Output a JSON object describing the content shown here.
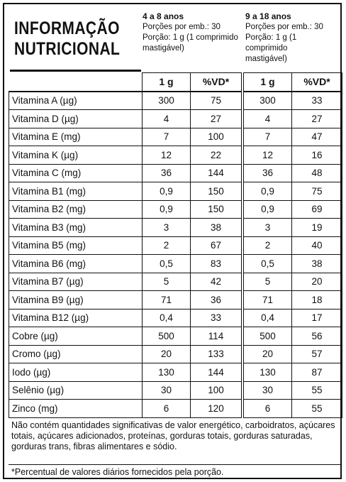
{
  "header": {
    "title_line1": "INFORMAÇÃO",
    "title_line2": "NUTRICIONAL"
  },
  "groups": [
    {
      "title": "4 a 8 anos",
      "line1": "Porções por emb.: 30",
      "line2": "Porção: 1 g (1 comprimido",
      "line3": "mastigável)"
    },
    {
      "title": "9 a 18 anos",
      "line1": "Porções por emb.: 30",
      "line2": "Porção: 1 g (1 comprimido",
      "line3": "mastigável)"
    }
  ],
  "columns": {
    "g1_amount": "1 g",
    "g1_vd": "%VD*",
    "g2_amount": "1 g",
    "g2_vd": "%VD*"
  },
  "rows": [
    {
      "name": "Vitamina A (µg)",
      "a1": "300",
      "v1": "75",
      "a2": "300",
      "v2": "33"
    },
    {
      "name": "Vitamina D (µg)",
      "a1": "4",
      "v1": "27",
      "a2": "4",
      "v2": "27"
    },
    {
      "name": "Vitamina E (mg)",
      "a1": "7",
      "v1": "100",
      "a2": "7",
      "v2": "47"
    },
    {
      "name": "Vitamina K (µg)",
      "a1": "12",
      "v1": "22",
      "a2": "12",
      "v2": "16"
    },
    {
      "name": "Vitamina C (mg)",
      "a1": "36",
      "v1": "144",
      "a2": "36",
      "v2": "48"
    },
    {
      "name": "Vitamina B1 (mg)",
      "a1": "0,9",
      "v1": "150",
      "a2": "0,9",
      "v2": "75"
    },
    {
      "name": "Vitamina B2 (mg)",
      "a1": "0,9",
      "v1": "150",
      "a2": "0,9",
      "v2": "69"
    },
    {
      "name": "Vitamina B3 (mg)",
      "a1": "3",
      "v1": "38",
      "a2": "3",
      "v2": "19"
    },
    {
      "name": "Vitamina B5 (mg)",
      "a1": "2",
      "v1": "67",
      "a2": "2",
      "v2": "40"
    },
    {
      "name": "Vitamina B6 (mg)",
      "a1": "0,5",
      "v1": "83",
      "a2": "0,5",
      "v2": "38"
    },
    {
      "name": "Vitamina B7 (µg)",
      "a1": "5",
      "v1": "42",
      "a2": "5",
      "v2": "20"
    },
    {
      "name": "Vitamina B9 (µg)",
      "a1": "71",
      "v1": "36",
      "a2": "71",
      "v2": "18"
    },
    {
      "name": "Vitamina B12 (µg)",
      "a1": "0,4",
      "v1": "33",
      "a2": "0,4",
      "v2": "17"
    },
    {
      "name": "Cobre (µg)",
      "a1": "500",
      "v1": "114",
      "a2": "500",
      "v2": "56"
    },
    {
      "name": "Cromo (µg)",
      "a1": "20",
      "v1": "133",
      "a2": "20",
      "v2": "57"
    },
    {
      "name": "Iodo (µg)",
      "a1": "130",
      "v1": "144",
      "a2": "130",
      "v2": "87"
    },
    {
      "name": "Selênio (µg)",
      "a1": "30",
      "v1": "100",
      "a2": "30",
      "v2": "55"
    },
    {
      "name": "Zinco (mg)",
      "a1": "6",
      "v1": "120",
      "a2": "6",
      "v2": "55"
    }
  ],
  "footer": {
    "note": "Não contém quantidades significativas de valor energético, carboidratos, açúcares totais, açúcares adicionados, proteínas, gorduras totais, gorduras saturadas, gorduras trans, fibras alimentares e sódio.",
    "footnote": "*Percentual de valores diários fornecidos pela porção."
  }
}
